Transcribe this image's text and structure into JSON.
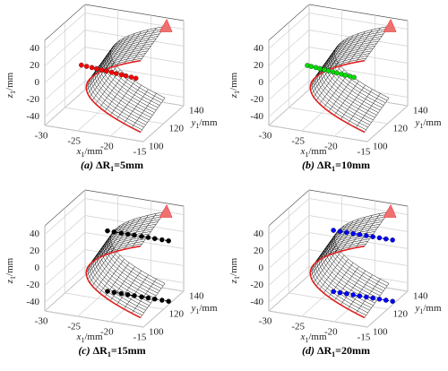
{
  "chart_data": [
    {
      "type": "scatter3d",
      "caption": {
        "label": "(a)",
        "symbol": "ΔR",
        "sub": "1",
        "rest": "=5mm"
      },
      "xlabel": {
        "var": "x",
        "sub": "1",
        "unit": "/mm"
      },
      "ylabel": {
        "var": "y",
        "sub": "1",
        "unit": "/mm"
      },
      "zlabel": {
        "var": "z",
        "sub": "1",
        "unit": "/mm"
      },
      "xlim": [
        -30,
        -15
      ],
      "ylim": [
        100,
        140
      ],
      "zlim": [
        -50,
        50
      ],
      "xticks": [
        -30,
        -25,
        -20,
        -15
      ],
      "yticks": [
        100,
        120,
        140
      ],
      "zticks": [
        -40,
        -20,
        0,
        20,
        40
      ],
      "grid": true,
      "series": [
        {
          "color": "#ff0000",
          "x": [
            -27.5,
            -26.7,
            -25.9,
            -25.2,
            -24.4,
            -23.7,
            -22.9,
            -22.2,
            -21.4,
            -20.7,
            -19.9,
            -19.2
          ],
          "y": [
            120,
            120,
            120,
            120,
            120,
            120,
            120,
            120,
            120,
            120,
            120,
            120
          ],
          "z": [
            3,
            2.5,
            2.1,
            1.6,
            1.2,
            0.7,
            0.3,
            -0.2,
            -0.6,
            -1.1,
            -1.5,
            -2
          ]
        }
      ]
    },
    {
      "type": "scatter3d",
      "caption": {
        "label": "(b)",
        "symbol": "ΔR",
        "sub": "1",
        "rest": "=10mm"
      },
      "xlabel": {
        "var": "x",
        "sub": "1",
        "unit": "/mm"
      },
      "ylabel": {
        "var": "y",
        "sub": "1",
        "unit": "/mm"
      },
      "zlabel": {
        "var": "z",
        "sub": "1",
        "unit": "/mm"
      },
      "xlim": [
        -30,
        -15
      ],
      "ylim": [
        100,
        140
      ],
      "zlim": [
        -50,
        50
      ],
      "xticks": [
        -30,
        -25,
        -20,
        -15
      ],
      "yticks": [
        100,
        120,
        140
      ],
      "zticks": [
        -40,
        -20,
        0,
        20,
        40
      ],
      "grid": true,
      "series": [
        {
          "color": "#00dd00",
          "x": [
            -27.2,
            -26.6,
            -25.9,
            -25.3,
            -24.6,
            -24,
            -23.3,
            -22.7,
            -22,
            -21.4,
            -20.7,
            -20.1
          ],
          "y": [
            120,
            120,
            120,
            120,
            120,
            120,
            120,
            120,
            120,
            120,
            120,
            120
          ],
          "z": [
            3,
            2.5,
            2.1,
            1.6,
            1.2,
            0.7,
            0.3,
            -0.2,
            -0.6,
            -1.1,
            -1.5,
            -2
          ]
        }
      ]
    },
    {
      "type": "scatter3d",
      "caption": {
        "label": "(c)",
        "symbol": "ΔR",
        "sub": "1",
        "rest": "=15mm"
      },
      "xlabel": {
        "var": "x",
        "sub": "1",
        "unit": "/mm"
      },
      "ylabel": {
        "var": "y",
        "sub": "1",
        "unit": "/mm"
      },
      "zlabel": {
        "var": "z",
        "sub": "1",
        "unit": "/mm"
      },
      "xlim": [
        -30,
        -15
      ],
      "ylim": [
        100,
        140
      ],
      "zlim": [
        -50,
        50
      ],
      "xticks": [
        -30,
        -25,
        -20,
        -15
      ],
      "yticks": [
        100,
        120,
        140
      ],
      "zticks": [
        -40,
        -20,
        0,
        20,
        40
      ],
      "grid": true,
      "series": [
        {
          "color": "#000000",
          "x": [
            -24.3,
            -23.3,
            -22.2,
            -21.2,
            -20.2,
            -19.1,
            -18.1,
            -17.1,
            -16,
            -15
          ],
          "y": [
            125,
            125,
            125,
            125,
            125,
            125,
            125,
            125,
            125,
            125
          ],
          "z": [
            25,
            25,
            25,
            25,
            25,
            25,
            25,
            25,
            25,
            25
          ]
        },
        {
          "color": "#000000",
          "x": [
            -24.3,
            -23.3,
            -22.2,
            -21.2,
            -20.2,
            -19.1,
            -18.1,
            -17.1,
            -16,
            -15
          ],
          "y": [
            125,
            125,
            125,
            125,
            125,
            125,
            125,
            125,
            125,
            125
          ],
          "z": [
            -46,
            -46,
            -46,
            -46,
            -46,
            -46,
            -46,
            -46,
            -46,
            -46
          ]
        }
      ]
    },
    {
      "type": "scatter3d",
      "caption": {
        "label": "(d)",
        "symbol": "ΔR",
        "sub": "1",
        "rest": "=20mm"
      },
      "xlabel": {
        "var": "x",
        "sub": "1",
        "unit": "/mm"
      },
      "ylabel": {
        "var": "y",
        "sub": "1",
        "unit": "/mm"
      },
      "zlabel": {
        "var": "z",
        "sub": "1",
        "unit": "/mm"
      },
      "xlim": [
        -30,
        -15
      ],
      "ylim": [
        100,
        140
      ],
      "zlim": [
        -50,
        50
      ],
      "xticks": [
        -30,
        -25,
        -20,
        -15
      ],
      "yticks": [
        100,
        120,
        140
      ],
      "zticks": [
        -40,
        -20,
        0,
        20,
        40
      ],
      "grid": true,
      "series": [
        {
          "color": "#0000ff",
          "x": [
            -24,
            -23,
            -22,
            -21,
            -20,
            -19,
            -18,
            -17,
            -16,
            -15
          ],
          "y": [
            125,
            125,
            125,
            125,
            125,
            125,
            125,
            125,
            125,
            125
          ],
          "z": [
            26,
            26,
            26,
            26,
            26,
            26,
            26,
            26,
            26,
            26
          ]
        },
        {
          "color": "#0000ff",
          "x": [
            -24,
            -23,
            -22,
            -21,
            -20,
            -19,
            -18,
            -17,
            -16,
            -15
          ],
          "y": [
            125,
            125,
            125,
            125,
            125,
            125,
            125,
            125,
            125,
            125
          ],
          "z": [
            -46,
            -46,
            -46,
            -46,
            -46,
            -46,
            -46,
            -46,
            -46,
            -46
          ]
        }
      ]
    }
  ]
}
